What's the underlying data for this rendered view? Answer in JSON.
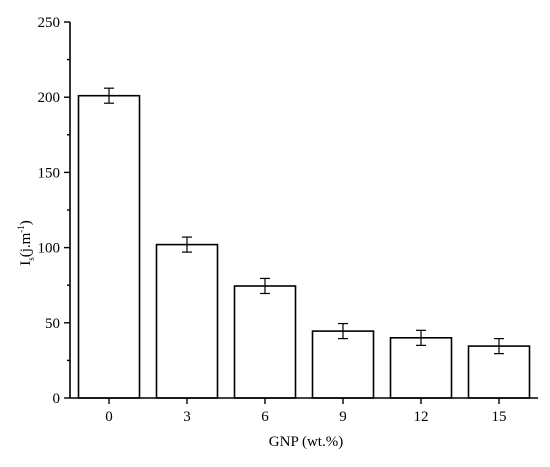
{
  "chart_data": {
    "type": "bar",
    "categories": [
      "0",
      "3",
      "6",
      "9",
      "12",
      "15"
    ],
    "values": [
      201,
      102,
      74.5,
      44.5,
      40,
      34.5
    ],
    "errors": [
      5,
      5,
      5,
      5,
      5,
      5
    ],
    "xlabel": "GNP (wt.%)",
    "ylabel": {
      "main": "I",
      "sub": "s",
      "unit_open": "(j.m",
      "unit_sup": "-1",
      "unit_close": ")"
    },
    "ylim": [
      0,
      250
    ],
    "yticks": [
      "0",
      "50",
      "100",
      "150",
      "200",
      "250"
    ],
    "grid": false
  }
}
